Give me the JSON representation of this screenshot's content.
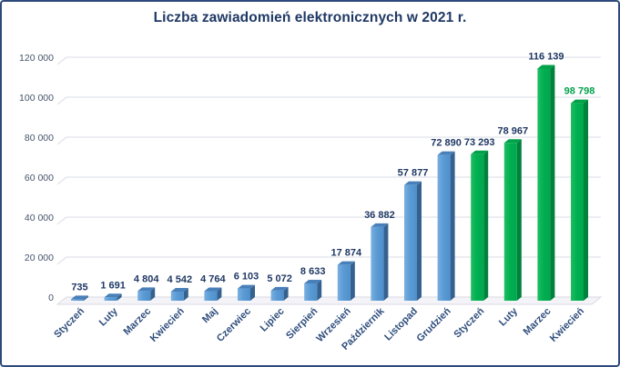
{
  "window": {
    "background": "#FFFFFF",
    "border_color": "#2E4A7D"
  },
  "chart_data": {
    "type": "bar",
    "style": "3d-column",
    "title": "Liczba zawiadomień elektronicznych w 2021 r.",
    "xlabel": "",
    "ylabel": "",
    "legend": "none",
    "grid": "horizontal",
    "ylim": [
      0,
      120000
    ],
    "y_ticks": [
      0,
      20000,
      40000,
      60000,
      80000,
      100000,
      120000
    ],
    "y_tick_labels": [
      "0",
      "20 000",
      "40 000",
      "60 000",
      "80 000",
      "100 000",
      "120 000"
    ],
    "categories": [
      "Styczeń",
      "Luty",
      "Marzec",
      "Kwiecień",
      "Maj",
      "Czerwiec",
      "Lipiec",
      "Sierpień",
      "Wrzesień",
      "Październik",
      "Listopad",
      "Grudzień",
      "Styczeń",
      "Luty",
      "Marzec",
      "Kwiecień"
    ],
    "values": [
      735,
      1691,
      4804,
      4542,
      4764,
      6103,
      5072,
      8633,
      17874,
      36882,
      57877,
      72890,
      73293,
      78967,
      116139,
      98798
    ],
    "value_labels": [
      "735",
      "1 691",
      "4 804",
      "4 542",
      "4 764",
      "6 103",
      "5 072",
      "8 633",
      "17 874",
      "36 882",
      "57 877",
      "72 890",
      "73 293",
      "78 967",
      "116 139",
      "98 798"
    ],
    "bar_groups": [
      "blue",
      "blue",
      "blue",
      "blue",
      "blue",
      "blue",
      "blue",
      "blue",
      "blue",
      "blue",
      "blue",
      "blue",
      "green",
      "green",
      "green",
      "green"
    ],
    "value_label_colors": [
      "navy",
      "navy",
      "navy",
      "navy",
      "navy",
      "navy",
      "navy",
      "navy",
      "navy",
      "navy",
      "navy",
      "navy",
      "navy",
      "navy",
      "navy",
      "green"
    ],
    "colors": {
      "title": "#1F3864",
      "axis_tick_label": "#44546A",
      "category_label": "#2E4D7C",
      "value_label_navy": "#203864",
      "value_label_green": "#00A14B",
      "gridline": "#E1E3EC",
      "floor_fill": "#F4F4F8",
      "floor_stroke": "#D9DAE3",
      "blue_front_light": "#79AFE0",
      "blue_front": "#5B9BD5",
      "blue_front_deep": "#4E8FCB",
      "blue_top": "#4980BA",
      "blue_side": "#35618F",
      "green_front_light": "#21BE62",
      "green_front": "#00B052",
      "green_front_deep": "#00A74C",
      "green_top": "#00A148",
      "green_side": "#00823C"
    }
  }
}
